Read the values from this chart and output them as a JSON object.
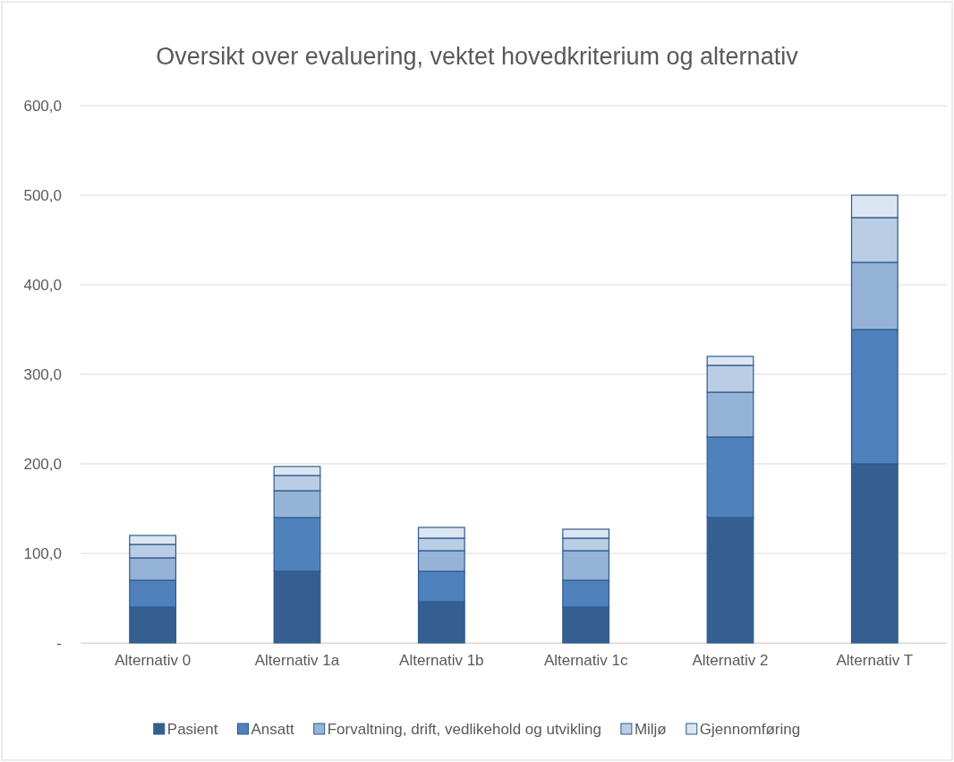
{
  "chart_data": {
    "type": "bar",
    "title": "Oversikt over evaluering, vektet hovedkriterium og alternativ",
    "categories": [
      "Alternativ 0",
      "Alternativ 1a",
      "Alternativ 1b",
      "Alternativ 1c",
      "Alternativ 2",
      "Alternativ T"
    ],
    "stacked": true,
    "series": [
      {
        "name": "Pasient",
        "color": "#355f91",
        "values": [
          40,
          80,
          46,
          40,
          140,
          200
        ]
      },
      {
        "name": "Ansatt",
        "color": "#4f81bd",
        "values": [
          30,
          60,
          34,
          30,
          90,
          150
        ]
      },
      {
        "name": "Forvaltning, drift, vedlikehold og utvikling",
        "color": "#95b3d7",
        "values": [
          25,
          30,
          23,
          33,
          50,
          75
        ]
      },
      {
        "name": "Miljø",
        "color": "#b9cde5",
        "values": [
          15,
          17,
          14,
          14,
          30,
          50
        ]
      },
      {
        "name": "Gjennomføring",
        "color": "#dce6f2",
        "values": [
          10,
          10,
          12,
          10,
          10,
          25
        ]
      }
    ],
    "ylim": [
      0,
      600
    ],
    "yticks": [
      {
        "value": 0,
        "label": "-"
      },
      {
        "value": 100,
        "label": "100,0"
      },
      {
        "value": 200,
        "label": "200,0"
      },
      {
        "value": 300,
        "label": "300,0"
      },
      {
        "value": 400,
        "label": "400,0"
      },
      {
        "value": 500,
        "label": "500,0"
      },
      {
        "value": 600,
        "label": "600,0"
      }
    ],
    "grid": "y",
    "legend": "bottom"
  }
}
